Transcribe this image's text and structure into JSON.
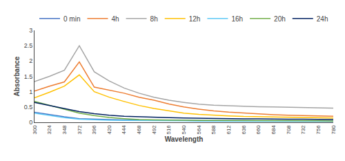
{
  "chart_data": {
    "type": "line",
    "xlabel": "Wavelength",
    "ylabel": "Absorbance",
    "x": [
      300,
      324,
      348,
      372,
      396,
      420,
      444,
      468,
      492,
      516,
      540,
      564,
      588,
      612,
      636,
      660,
      684,
      708,
      732,
      756,
      780
    ],
    "series": [
      {
        "name": "0 min",
        "color": "#4472C4",
        "values": [
          0.33,
          0.25,
          0.18,
          0.12,
          0.1,
          0.09,
          0.08,
          0.08,
          0.07,
          0.07,
          0.06,
          0.06,
          0.06,
          0.05,
          0.05,
          0.05,
          0.04,
          0.04,
          0.04,
          0.04,
          0.04
        ]
      },
      {
        "name": "4h",
        "color": "#ED7D31",
        "values": [
          1.02,
          1.18,
          1.32,
          1.97,
          1.15,
          1.05,
          0.95,
          0.82,
          0.72,
          0.6,
          0.5,
          0.43,
          0.37,
          0.33,
          0.3,
          0.27,
          0.25,
          0.23,
          0.22,
          0.21,
          0.2
        ]
      },
      {
        "name": "8h",
        "color": "#A5A5A5",
        "values": [
          1.33,
          1.5,
          1.7,
          2.5,
          1.65,
          1.35,
          1.12,
          0.95,
          0.82,
          0.72,
          0.65,
          0.59,
          0.56,
          0.54,
          0.52,
          0.51,
          0.5,
          0.49,
          0.48,
          0.47,
          0.46
        ]
      },
      {
        "name": "12h",
        "color": "#FFC000",
        "values": [
          0.8,
          0.98,
          1.18,
          1.55,
          1.0,
          0.82,
          0.68,
          0.55,
          0.45,
          0.37,
          0.3,
          0.26,
          0.23,
          0.21,
          0.19,
          0.18,
          0.17,
          0.16,
          0.15,
          0.15,
          0.14
        ]
      },
      {
        "name": "16h",
        "color": "#5BC8F5",
        "values": [
          0.3,
          0.22,
          0.15,
          0.1,
          0.08,
          0.07,
          0.06,
          0.06,
          0.05,
          0.05,
          0.05,
          0.04,
          0.04,
          0.04,
          0.04,
          0.03,
          0.03,
          0.03,
          0.03,
          0.03,
          0.03
        ]
      },
      {
        "name": "20h",
        "color": "#70AD47",
        "values": [
          0.68,
          0.55,
          0.42,
          0.3,
          0.22,
          0.16,
          0.12,
          0.09,
          0.08,
          0.07,
          0.07,
          0.06,
          0.06,
          0.06,
          0.05,
          0.05,
          0.05,
          0.05,
          0.05,
          0.05,
          0.04
        ]
      },
      {
        "name": "24h",
        "color": "#002060",
        "values": [
          0.65,
          0.55,
          0.45,
          0.35,
          0.28,
          0.23,
          0.2,
          0.18,
          0.16,
          0.15,
          0.14,
          0.13,
          0.12,
          0.12,
          0.11,
          0.11,
          0.1,
          0.1,
          0.1,
          0.09,
          0.09
        ]
      }
    ],
    "xlim": [
      300,
      780
    ],
    "xticks": [
      300,
      324,
      348,
      372,
      396,
      420,
      444,
      468,
      492,
      516,
      540,
      564,
      588,
      612,
      636,
      660,
      684,
      708,
      732,
      756,
      780
    ],
    "ylim": [
      0,
      3
    ],
    "yticks": [
      0,
      0.5,
      1,
      1.5,
      2,
      2.5,
      3
    ],
    "grid": false,
    "legend": "top"
  }
}
